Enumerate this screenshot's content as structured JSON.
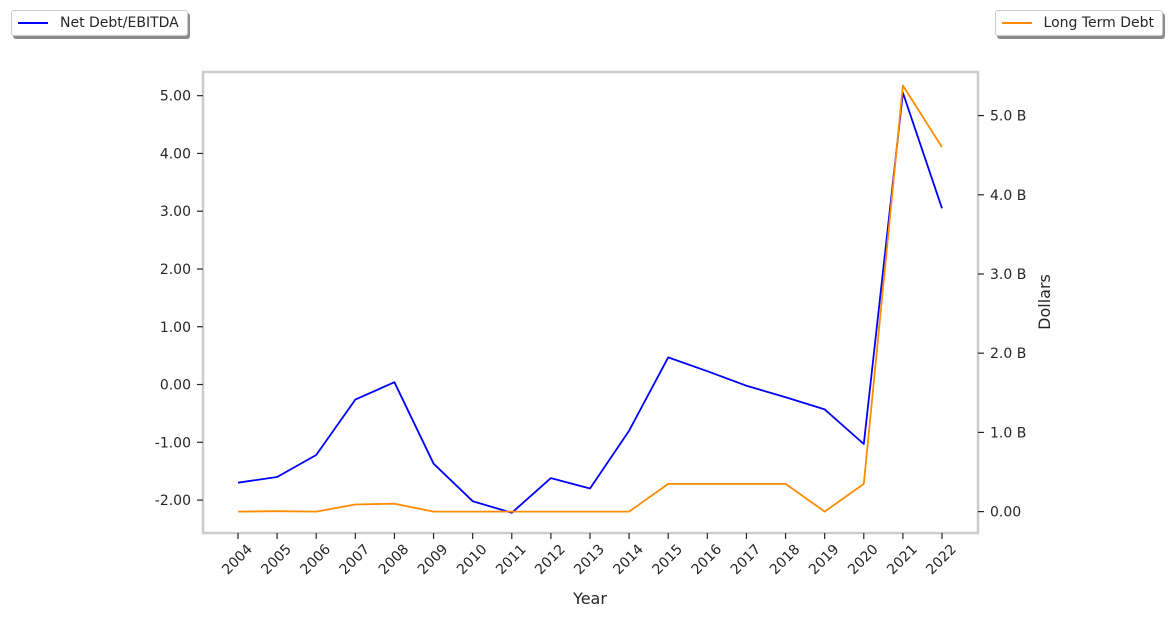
{
  "chart_data": {
    "type": "line",
    "xlabel": "Year",
    "ylabel_left": "",
    "ylabel_right": "Dollars",
    "categories": [
      "2004",
      "2005",
      "2006",
      "2007",
      "2008",
      "2009",
      "2010",
      "2011",
      "2012",
      "2013",
      "2014",
      "2015",
      "2016",
      "2017",
      "2018",
      "2019",
      "2020",
      "2021",
      "2022"
    ],
    "y_left_ticks": [
      -2,
      -1,
      0,
      1,
      2,
      3,
      4,
      5
    ],
    "y_left_tick_labels": [
      "-2.00",
      "-1.00",
      "0.00",
      "1.00",
      "2.00",
      "3.00",
      "4.00",
      "5.00"
    ],
    "y_left_range": [
      -2.57,
      5.41
    ],
    "y_right_ticks": [
      0,
      1,
      2,
      3,
      4,
      5
    ],
    "y_right_tick_labels": [
      "0.00",
      "1.0 B",
      "2.0 B",
      "3.0 B",
      "4.0 B",
      "5.0 B"
    ],
    "y_right_range": [
      -0.27,
      5.55
    ],
    "grid": false,
    "series": [
      {
        "name": "Net Debt/EBITDA",
        "axis": "left",
        "color": "#0000ff",
        "values": [
          -1.7,
          -1.6,
          -1.22,
          -0.26,
          0.04,
          -1.37,
          -2.02,
          -2.22,
          -1.62,
          -1.8,
          -0.8,
          0.47,
          0.23,
          -0.02,
          -0.22,
          -0.43,
          -1.03,
          5.05,
          3.05
        ]
      },
      {
        "name": "Long Term Debt",
        "axis": "right",
        "color": "#ff8c00",
        "values": [
          0.0,
          0.005,
          0.0,
          0.09,
          0.1,
          0.0,
          0.0,
          0.0,
          0.0,
          0.0,
          0.0,
          0.35,
          0.35,
          0.35,
          0.35,
          0.0,
          0.35,
          5.38,
          4.6
        ]
      }
    ],
    "legend": [
      {
        "label": "Net Debt/EBITDA",
        "placement": "top-left"
      },
      {
        "label": "Long Term Debt",
        "placement": "top-right"
      }
    ]
  }
}
